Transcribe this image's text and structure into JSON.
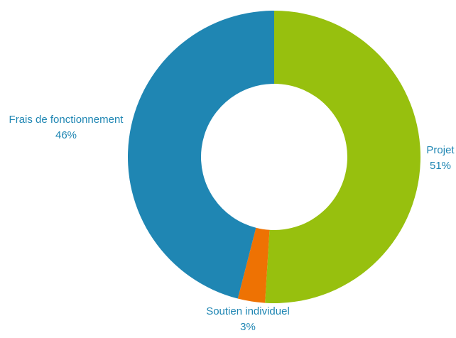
{
  "chart_data": {
    "type": "pie",
    "variant": "donut",
    "slices": [
      {
        "label": "Projet",
        "value": 51,
        "display": "51%",
        "color": "#97c00e"
      },
      {
        "label": "Soutien individuel",
        "value": 3,
        "display": "3%",
        "color": "#ee7203"
      },
      {
        "label": "Frais de fonctionnement",
        "value": 46,
        "display": "46%",
        "color": "#1f86b3"
      }
    ],
    "start": "12 o'clock",
    "direction": "clockwise",
    "label_color": "#1f86b3",
    "legend": "none"
  }
}
